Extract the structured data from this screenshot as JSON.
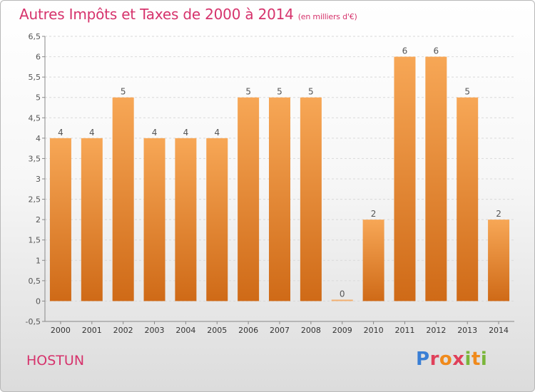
{
  "chart_data": {
    "type": "bar",
    "title": "Autres Impôts et Taxes de 2000 à 2014",
    "subtitle": "(en milliers d'€)",
    "categories": [
      "2000",
      "2001",
      "2002",
      "2003",
      "2004",
      "2005",
      "2006",
      "2007",
      "2008",
      "2009",
      "2010",
      "2011",
      "2012",
      "2013",
      "2014"
    ],
    "values": [
      4,
      4,
      5,
      4,
      4,
      4,
      5,
      5,
      5,
      0,
      2,
      6,
      6,
      5,
      2
    ],
    "ylim": [
      -0.5,
      6.5
    ],
    "yticks": [
      "-0,5",
      "0",
      "0,5",
      "1",
      "1,5",
      "2",
      "2,5",
      "3",
      "3,5",
      "4",
      "4,5",
      "5",
      "5,5",
      "6",
      "6,5"
    ],
    "grid": "horizontal dashed",
    "bar_color": "#f0903a"
  },
  "footer": {
    "commune": "HOSTUN",
    "logo_letters": [
      "P",
      "r",
      "o",
      "x",
      "i",
      "t",
      "i"
    ]
  }
}
